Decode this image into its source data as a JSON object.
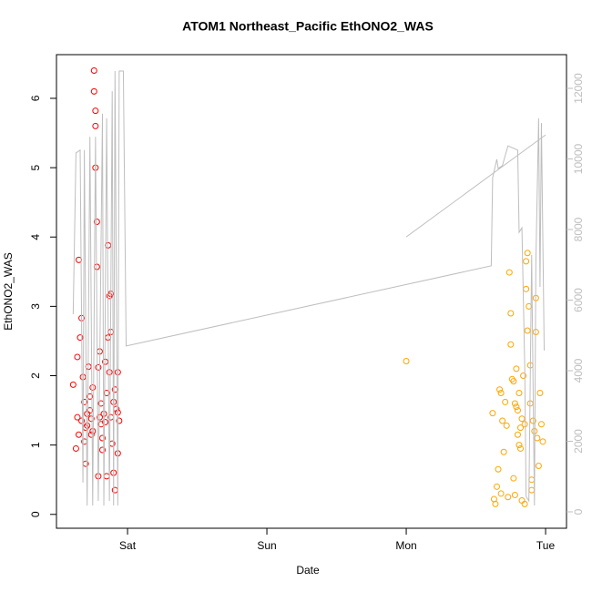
{
  "chart_data": {
    "type": "scatter",
    "title": "ATOM1 Northeast_Pacific EthONO2_WAS",
    "xlabel": "Date",
    "ylabel": "EthONO2_WAS",
    "xlim": [
      -0.51,
      3.15
    ],
    "xticks": [
      {
        "value": 0,
        "label": "Sat"
      },
      {
        "value": 1,
        "label": "Sun"
      },
      {
        "value": 2,
        "label": "Mon"
      },
      {
        "value": 3,
        "label": "Tue"
      }
    ],
    "ylim": [
      -0.2,
      6.63
    ],
    "yticks": [
      0,
      1,
      2,
      3,
      4,
      5,
      6
    ],
    "y2lim": [
      -465,
      12955
    ],
    "y2ticks": [
      0,
      2000,
      4000,
      6000,
      8000,
      10000,
      12000
    ],
    "y2color": "#bebebe",
    "series": [
      {
        "type": "scatter",
        "color": "#ff0000",
        "x": [
          -0.39,
          -0.37,
          -0.36,
          -0.35,
          -0.35,
          -0.34,
          -0.33,
          -0.33,
          -0.32,
          -0.31,
          -0.31,
          -0.3,
          -0.29,
          -0.29,
          -0.28,
          -0.27,
          -0.27,
          -0.26,
          -0.25,
          -0.25,
          -0.24,
          -0.24,
          -0.23,
          -0.23,
          -0.23,
          -0.22,
          -0.22,
          -0.21,
          -0.21,
          -0.2,
          -0.2,
          -0.19,
          -0.18,
          -0.18,
          -0.17,
          -0.16,
          -0.16,
          -0.15,
          -0.15,
          -0.14,
          -0.14,
          -0.13,
          -0.13,
          -0.12,
          -0.12,
          -0.12,
          -0.11,
          -0.1,
          -0.1,
          -0.09,
          -0.09,
          -0.08,
          -0.07,
          -0.07,
          -0.07,
          -0.06,
          -0.36,
          -0.3,
          -0.26,
          -0.19
        ],
        "values": [
          1.87,
          0.95,
          2.27,
          3.67,
          1.15,
          2.55,
          2.83,
          1.35,
          1.98,
          1.62,
          1.05,
          0.73,
          1.45,
          1.28,
          2.13,
          1.7,
          1.5,
          1.38,
          1.2,
          1.83,
          6.4,
          6.1,
          5.82,
          5.6,
          5.0,
          4.22,
          3.57,
          2.12,
          0.55,
          1.4,
          2.35,
          1.3,
          1.1,
          0.93,
          1.45,
          1.33,
          2.2,
          1.75,
          0.55,
          3.88,
          2.55,
          2.05,
          3.15,
          3.18,
          2.63,
          1.4,
          1.02,
          1.62,
          0.6,
          1.8,
          0.35,
          1.52,
          1.47,
          2.05,
          0.88,
          1.35,
          1.4,
          1.25,
          1.15,
          1.6
        ]
      },
      {
        "type": "scatter",
        "color": "#ffa500",
        "x": [
          2.0,
          2.62,
          2.63,
          2.64,
          2.65,
          2.66,
          2.67,
          2.68,
          2.68,
          2.69,
          2.7,
          2.71,
          2.72,
          2.73,
          2.74,
          2.75,
          2.75,
          2.76,
          2.77,
          2.77,
          2.78,
          2.78,
          2.79,
          2.79,
          2.8,
          2.8,
          2.81,
          2.81,
          2.82,
          2.82,
          2.83,
          2.83,
          2.84,
          2.85,
          2.85,
          2.86,
          2.86,
          2.87,
          2.87,
          2.88,
          2.89,
          2.89,
          2.9,
          2.91,
          2.92,
          2.93,
          2.93,
          2.94,
          2.95,
          2.96,
          2.97,
          2.98,
          2.9
        ],
        "values": [
          2.21,
          1.46,
          0.22,
          0.15,
          0.4,
          0.65,
          1.8,
          1.75,
          0.3,
          1.35,
          0.9,
          1.62,
          1.28,
          0.25,
          3.49,
          2.9,
          2.45,
          1.95,
          1.92,
          0.52,
          1.6,
          0.28,
          2.1,
          1.55,
          1.5,
          1.15,
          1.0,
          1.75,
          0.95,
          1.25,
          0.2,
          1.38,
          2.0,
          0.15,
          1.3,
          3.65,
          3.25,
          3.77,
          2.65,
          3.0,
          2.15,
          1.6,
          0.5,
          1.35,
          1.2,
          3.12,
          2.63,
          1.1,
          0.7,
          1.75,
          1.3,
          1.05,
          0.35
        ]
      },
      {
        "type": "line",
        "axis": "y2",
        "color": "#bebebe",
        "x": [
          -0.39,
          -0.37,
          -0.34,
          -0.32,
          -0.31,
          -0.29,
          -0.27,
          -0.25,
          -0.23,
          -0.21,
          -0.18,
          -0.17,
          -0.15,
          -0.13,
          -0.11,
          -0.1,
          -0.09,
          -0.07,
          -0.06,
          -0.03,
          -0.01,
          2.61,
          2.62,
          2.65,
          2.66,
          2.69,
          2.73,
          2.8,
          2.81,
          2.83,
          2.85,
          2.86,
          2.88,
          2.9,
          2.91,
          2.92,
          2.93,
          2.95,
          2.96,
          2.97,
          2.99,
          null,
          2.0,
          3.0
        ],
        "values": [
          5600,
          10170,
          10250,
          830,
          10250,
          180,
          10630,
          180,
          10630,
          310,
          11280,
          180,
          11150,
          310,
          11920,
          180,
          12490,
          180,
          12490,
          12490,
          4700,
          6970,
          9470,
          9990,
          9730,
          9810,
          10370,
          10250,
          7920,
          8050,
          4180,
          440,
          310,
          7280,
          3660,
          180,
          7020,
          11150,
          6370,
          11020,
          4570,
          null,
          7790,
          10680
        ]
      }
    ]
  }
}
